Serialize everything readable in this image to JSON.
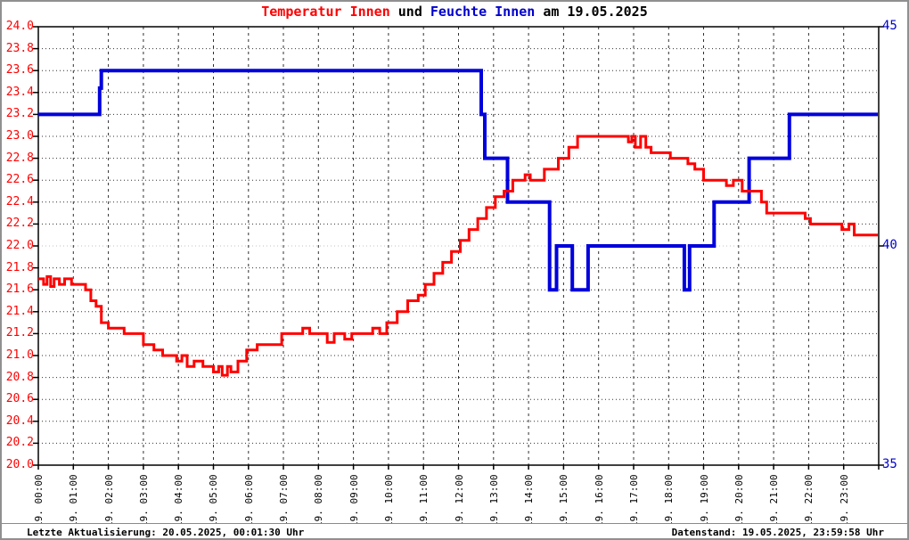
{
  "title": {
    "part_temperature": "Temperatur Innen",
    "part_und": " und ",
    "part_humidity": "Feuchte Innen",
    "part_date": " am 19.05.2025"
  },
  "footer": {
    "left": "Letzte Aktualisierung: 20.05.2025, 00:01:30 Uhr",
    "right": "Datenstand: 19.05.2025, 23:59:58 Uhr"
  },
  "colors": {
    "temperature": "#ff0000",
    "humidity": "#0000dd",
    "humidity_label": "#0000cc",
    "title_text": "#000000",
    "grid": "#303030",
    "grid_light": "#c0c0c0",
    "axis": "#000000"
  },
  "chart_data": {
    "type": "line",
    "title": "Temperatur Innen und Feuchte Innen am 19.05.2025",
    "grid": "on",
    "legend_position": "none",
    "x_axis": {
      "hours": 24,
      "tick_labels": [
        "19. 00:00",
        "19. 01:00",
        "19. 02:00",
        "19. 03:00",
        "19. 04:00",
        "19. 05:00",
        "19. 06:00",
        "19. 07:00",
        "19. 08:00",
        "19. 09:00",
        "19. 10:00",
        "19. 11:00",
        "19. 12:00",
        "19. 13:00",
        "19. 14:00",
        "19. 15:00",
        "19. 16:00",
        "19. 17:00",
        "19. 18:00",
        "19. 19:00",
        "19. 20:00",
        "19. 21:00",
        "19. 22:00",
        "19. 23:00"
      ]
    },
    "y_left": {
      "label_color": "#ff0000",
      "min": 20.0,
      "max": 24.0,
      "step": 0.2,
      "tick_labels": [
        "24.0",
        "23.8",
        "23.6",
        "23.4",
        "23.2",
        "23.0",
        "22.8",
        "22.6",
        "22.4",
        "22.2",
        "22.0",
        "21.8",
        "21.6",
        "21.4",
        "21.2",
        "21.0",
        "20.8",
        "20.6",
        "20.4",
        "20.2",
        "20.0"
      ]
    },
    "y_right": {
      "label_color": "#0000cc",
      "min": 35,
      "max": 45,
      "tick_values": [
        45,
        40,
        35
      ],
      "tick_labels": [
        "45",
        "40",
        "35"
      ]
    },
    "series": [
      {
        "name": "Feuchte Innen",
        "axis": "right",
        "color": "#0000dd",
        "stroke_width": 4,
        "interpolation": "step-after",
        "points": [
          [
            0,
            43
          ],
          [
            1.75,
            43.6
          ],
          [
            1.8,
            44
          ],
          [
            12.65,
            43
          ],
          [
            12.75,
            42
          ],
          [
            13.4,
            41
          ],
          [
            14.6,
            39
          ],
          [
            14.8,
            40
          ],
          [
            15.25,
            39
          ],
          [
            15.7,
            40
          ],
          [
            18.45,
            39
          ],
          [
            18.6,
            40
          ],
          [
            19.3,
            41
          ],
          [
            20.3,
            42
          ],
          [
            21.45,
            43
          ],
          [
            23.95,
            43
          ]
        ]
      },
      {
        "name": "Temperatur Innen",
        "axis": "left",
        "color": "#ff0000",
        "stroke_width": 3,
        "interpolation": "step-after",
        "points": [
          [
            0,
            21.7
          ],
          [
            0.15,
            21.65
          ],
          [
            0.25,
            21.72
          ],
          [
            0.35,
            21.63
          ],
          [
            0.45,
            21.7
          ],
          [
            0.6,
            21.65
          ],
          [
            0.75,
            21.7
          ],
          [
            0.95,
            21.65
          ],
          [
            1.35,
            21.6
          ],
          [
            1.5,
            21.5
          ],
          [
            1.65,
            21.45
          ],
          [
            1.8,
            21.3
          ],
          [
            2.0,
            21.25
          ],
          [
            2.45,
            21.2
          ],
          [
            3.0,
            21.1
          ],
          [
            3.3,
            21.05
          ],
          [
            3.55,
            21.0
          ],
          [
            3.95,
            20.95
          ],
          [
            4.1,
            21.0
          ],
          [
            4.25,
            20.9
          ],
          [
            4.45,
            20.95
          ],
          [
            4.7,
            20.9
          ],
          [
            5.0,
            20.85
          ],
          [
            5.15,
            20.9
          ],
          [
            5.25,
            20.82
          ],
          [
            5.4,
            20.9
          ],
          [
            5.5,
            20.85
          ],
          [
            5.7,
            20.95
          ],
          [
            5.95,
            21.05
          ],
          [
            6.25,
            21.1
          ],
          [
            6.95,
            21.2
          ],
          [
            7.55,
            21.25
          ],
          [
            7.75,
            21.2
          ],
          [
            8.25,
            21.12
          ],
          [
            8.45,
            21.2
          ],
          [
            8.75,
            21.15
          ],
          [
            8.95,
            21.2
          ],
          [
            9.55,
            21.25
          ],
          [
            9.75,
            21.2
          ],
          [
            9.95,
            21.3
          ],
          [
            10.25,
            21.4
          ],
          [
            10.55,
            21.5
          ],
          [
            10.85,
            21.55
          ],
          [
            11.05,
            21.65
          ],
          [
            11.3,
            21.75
          ],
          [
            11.55,
            21.85
          ],
          [
            11.8,
            21.95
          ],
          [
            12.05,
            22.05
          ],
          [
            12.3,
            22.15
          ],
          [
            12.55,
            22.25
          ],
          [
            12.8,
            22.35
          ],
          [
            13.05,
            22.45
          ],
          [
            13.3,
            22.5
          ],
          [
            13.55,
            22.6
          ],
          [
            13.9,
            22.65
          ],
          [
            14.05,
            22.6
          ],
          [
            14.45,
            22.7
          ],
          [
            14.85,
            22.8
          ],
          [
            15.15,
            22.9
          ],
          [
            15.4,
            23.0
          ],
          [
            16.85,
            22.95
          ],
          [
            16.95,
            23.0
          ],
          [
            17.05,
            22.9
          ],
          [
            17.2,
            23.0
          ],
          [
            17.35,
            22.9
          ],
          [
            17.5,
            22.85
          ],
          [
            18.05,
            22.8
          ],
          [
            18.55,
            22.75
          ],
          [
            18.75,
            22.7
          ],
          [
            19.0,
            22.6
          ],
          [
            19.65,
            22.55
          ],
          [
            19.85,
            22.6
          ],
          [
            20.1,
            22.5
          ],
          [
            20.65,
            22.4
          ],
          [
            20.8,
            22.3
          ],
          [
            21.9,
            22.25
          ],
          [
            22.05,
            22.2
          ],
          [
            22.95,
            22.15
          ],
          [
            23.15,
            22.2
          ],
          [
            23.3,
            22.1
          ],
          [
            23.95,
            22.1
          ]
        ]
      }
    ]
  }
}
